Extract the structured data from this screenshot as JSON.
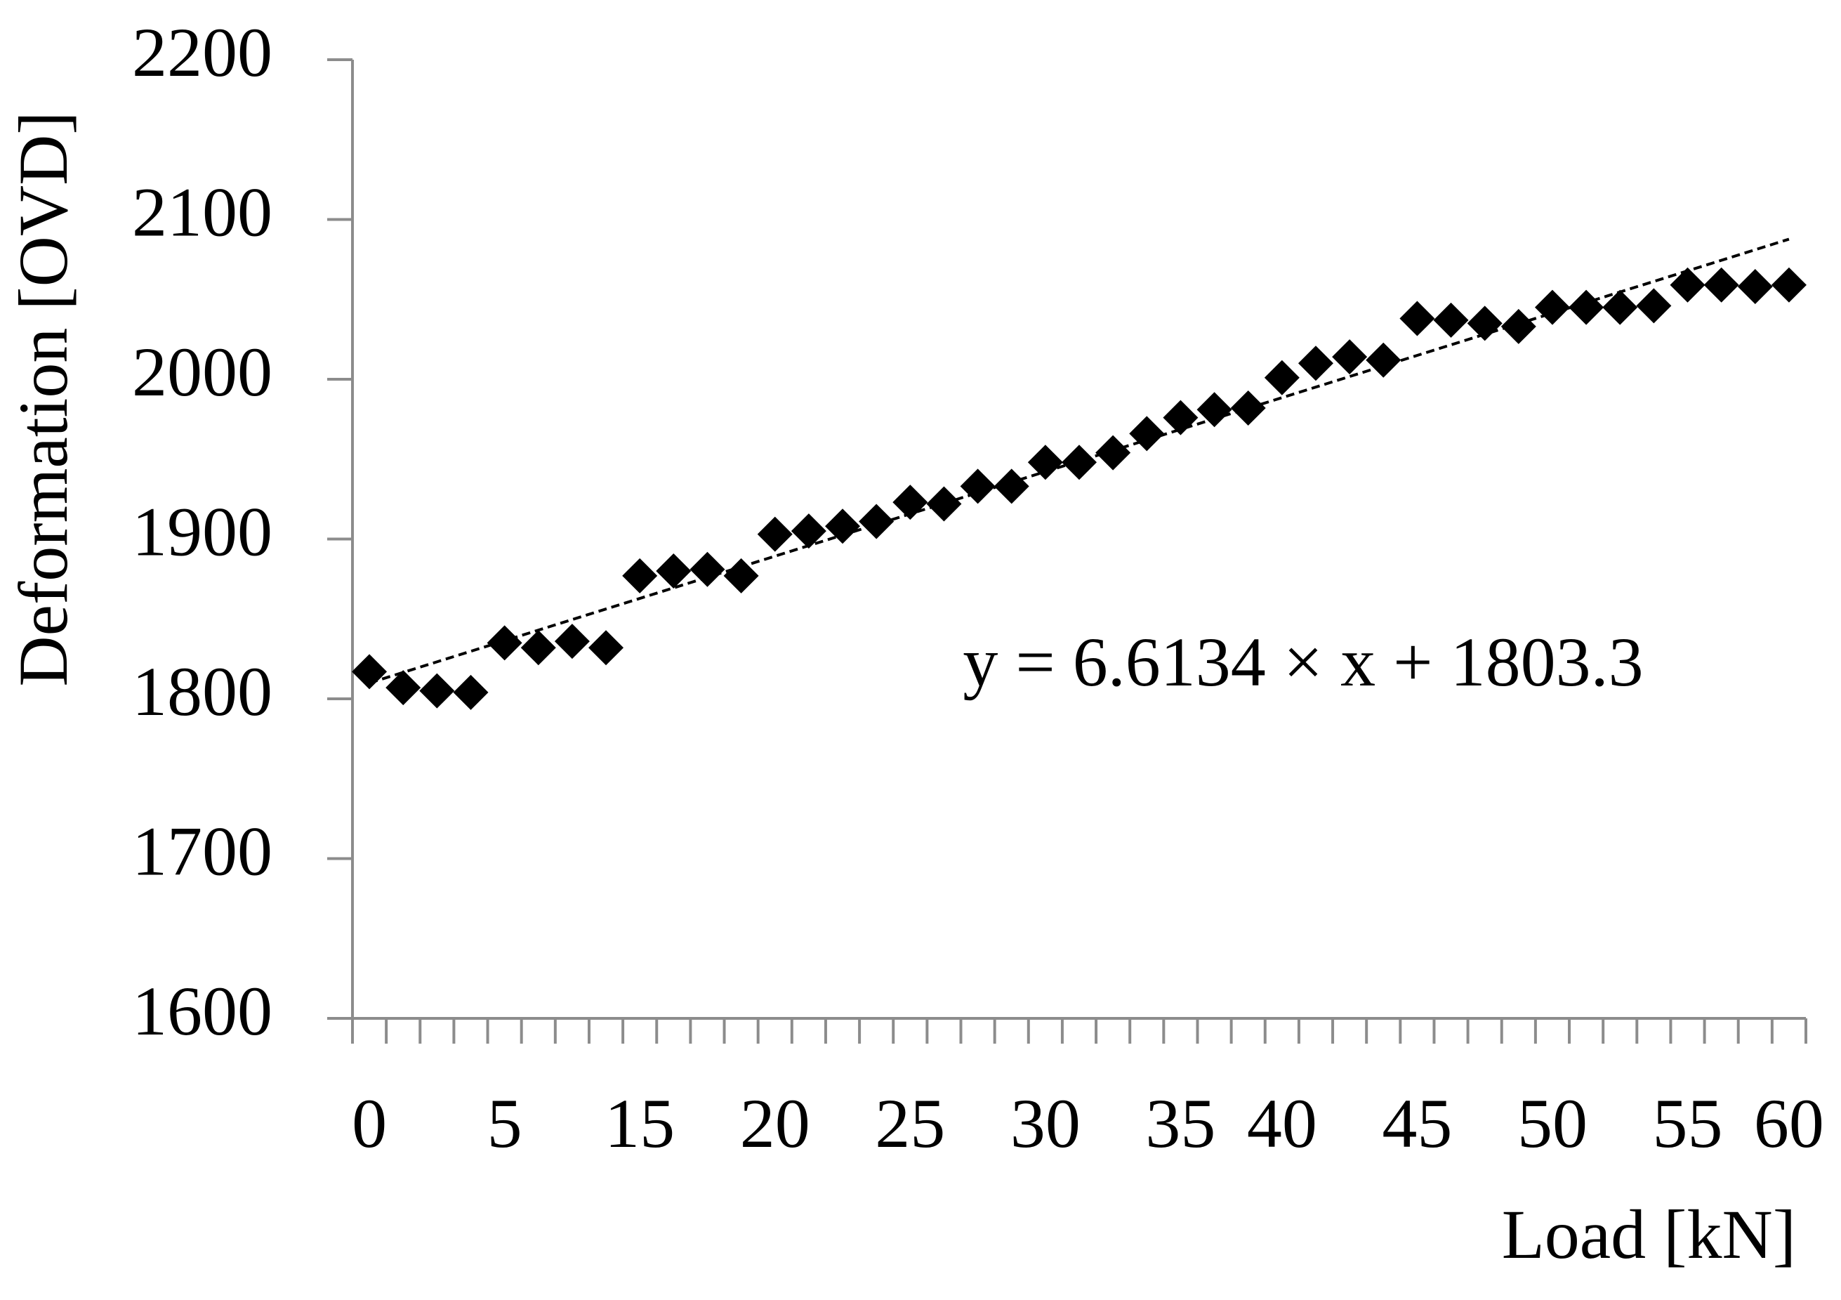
{
  "chart_data": {
    "type": "scatter",
    "x_label": "Load [kN]",
    "y_label": "Deformation [OVD]",
    "categories": [
      "0",
      null,
      null,
      null,
      "5",
      null,
      null,
      null,
      "15",
      null,
      null,
      null,
      "20",
      null,
      null,
      null,
      "25",
      null,
      null,
      null,
      "30",
      null,
      null,
      null,
      "35",
      null,
      null,
      "40",
      null,
      null,
      null,
      "45",
      null,
      null,
      null,
      "50",
      null,
      null,
      null,
      "55",
      null,
      null,
      "60"
    ],
    "values": [
      1817,
      1807,
      1805,
      1804,
      1835,
      1832,
      1836,
      1832,
      1877,
      1880,
      1881,
      1877,
      1903,
      1905,
      1908,
      1911,
      1923,
      1922,
      1933,
      1933,
      1948,
      1948,
      1954,
      1966,
      1976,
      1981,
      1982,
      2001,
      2010,
      2014,
      2012,
      2038,
      2037,
      2035,
      2033,
      2045,
      2045,
      2045,
      2046,
      2059,
      2059,
      2058,
      2059
    ],
    "color": "#000000",
    "ylim": [
      1600,
      2200
    ],
    "yticks": [
      1600,
      1700,
      1800,
      1900,
      2000,
      2100,
      2200
    ],
    "trendline": {
      "label": "y = 6.6134 × x + 1803.3",
      "slope": 6.6134,
      "intercept": 1803.3,
      "color": "#000000"
    }
  }
}
